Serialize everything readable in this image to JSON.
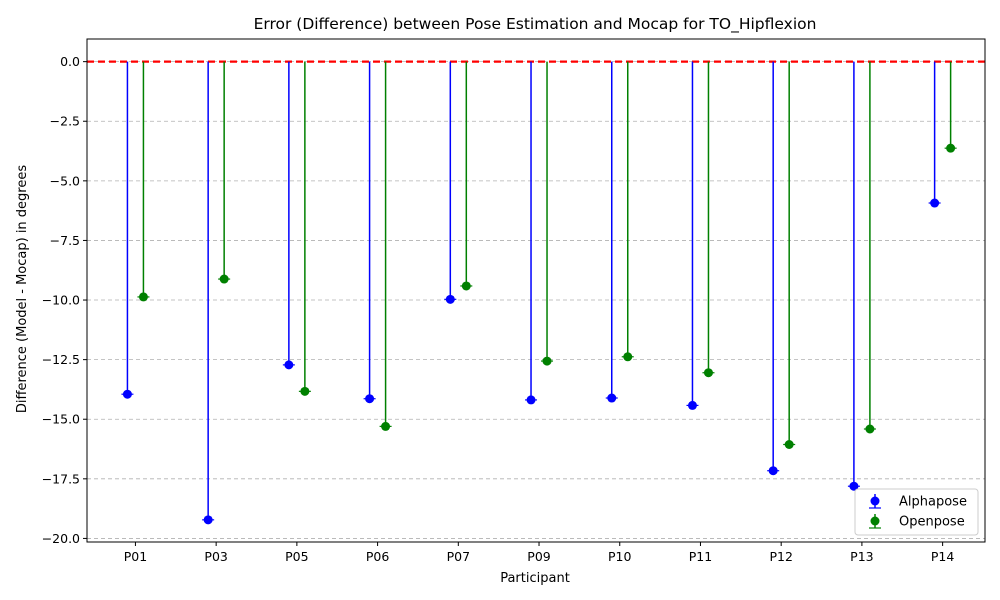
{
  "chart_data": {
    "type": "scatter",
    "title": "Error (Difference) between Pose Estimation and Mocap for TO_Hipflexion",
    "xlabel": "Participant",
    "ylabel": "Difference (Model - Mocap) in degrees",
    "categories": [
      "P01",
      "P03",
      "P05",
      "P06",
      "P07",
      "P09",
      "P10",
      "P11",
      "P12",
      "P13",
      "P14"
    ],
    "series": [
      {
        "name": "Alphapose",
        "color": "#0000ff",
        "values": [
          -13.95,
          -19.22,
          -12.72,
          -14.14,
          -9.97,
          -14.19,
          -14.11,
          -14.42,
          -17.16,
          -17.81,
          -5.93
        ]
      },
      {
        "name": "Openpose",
        "color": "#008000",
        "values": [
          -9.87,
          -9.12,
          -13.83,
          -15.3,
          -9.41,
          -12.56,
          -12.38,
          -13.05,
          -16.06,
          -15.41,
          -3.63
        ]
      }
    ],
    "reference_line": {
      "value": 0,
      "color": "#ff0000",
      "style": "dashed"
    },
    "ylim": [
      -20.15,
      0.95
    ],
    "yticks": [
      0.0,
      -2.5,
      -5.0,
      -7.5,
      -10.0,
      -12.5,
      -15.0,
      -17.5,
      -20.0
    ],
    "ytick_labels": [
      "0.0",
      "−2.5",
      "−5.0",
      "−7.5",
      "−10.0",
      "−12.5",
      "−15.0",
      "−17.5",
      "−20.0"
    ],
    "grid": "y-dashed",
    "legend_position": "lower-right"
  }
}
